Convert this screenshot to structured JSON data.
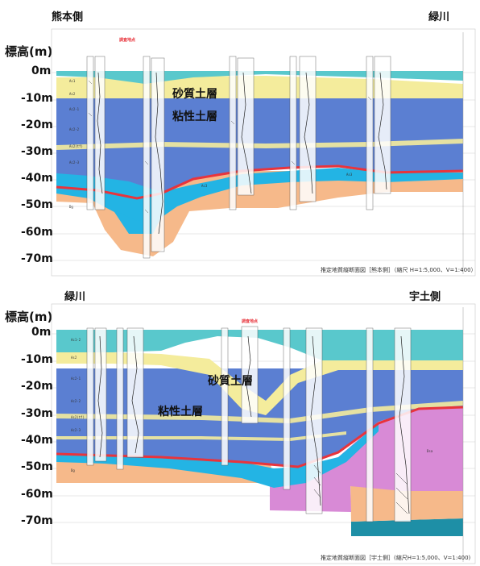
{
  "top": {
    "left_side": "熊本側",
    "right_side": "緑川",
    "axis_title": "標高(m)",
    "depths": [
      "0m",
      "-10m",
      "-20m",
      "-30m",
      "-40m",
      "-50m",
      "-60m",
      "-70m"
    ],
    "sand_label": "砂質土層",
    "clay_label": "粘性土層",
    "site_label": "調査地点",
    "caption": "推定地質縦断面図［熊本側］（縮尺 H=1:5,000、V=1:400）",
    "unit_labels": [
      "Ac1",
      "As2",
      "Ac2-1",
      "Ac2-2",
      "As2(tf)",
      "Ac2-3",
      "Ac3",
      "As3",
      "Dg"
    ]
  },
  "bottom": {
    "left_side": "緑川",
    "right_side": "宇土側",
    "axis_title": "標高(m)",
    "depths": [
      "0m",
      "-10m",
      "-20m",
      "-30m",
      "-40m",
      "-50m",
      "-60m",
      "-70m"
    ],
    "sand_label": "砂質土層",
    "clay_label": "粘性土層",
    "site_label": "調査地点",
    "caption": "推定地質縦断面図［宇土側］(縮尺H=1:5,000、V=1:400)",
    "unit_labels": [
      "Ac1-2",
      "As2",
      "Ac2-1",
      "Ac2-2",
      "As2(tf)",
      "Ac2-3",
      "Dg",
      "Dsa"
    ]
  },
  "colors": {
    "clay": "#5b7fd2",
    "sand": "#f4ec9c",
    "teal": "#59c8cc",
    "cyan": "#23b4e4",
    "orange": "#f6b98a",
    "magenta": "#d88ad6",
    "red_line": "#e8343c"
  }
}
